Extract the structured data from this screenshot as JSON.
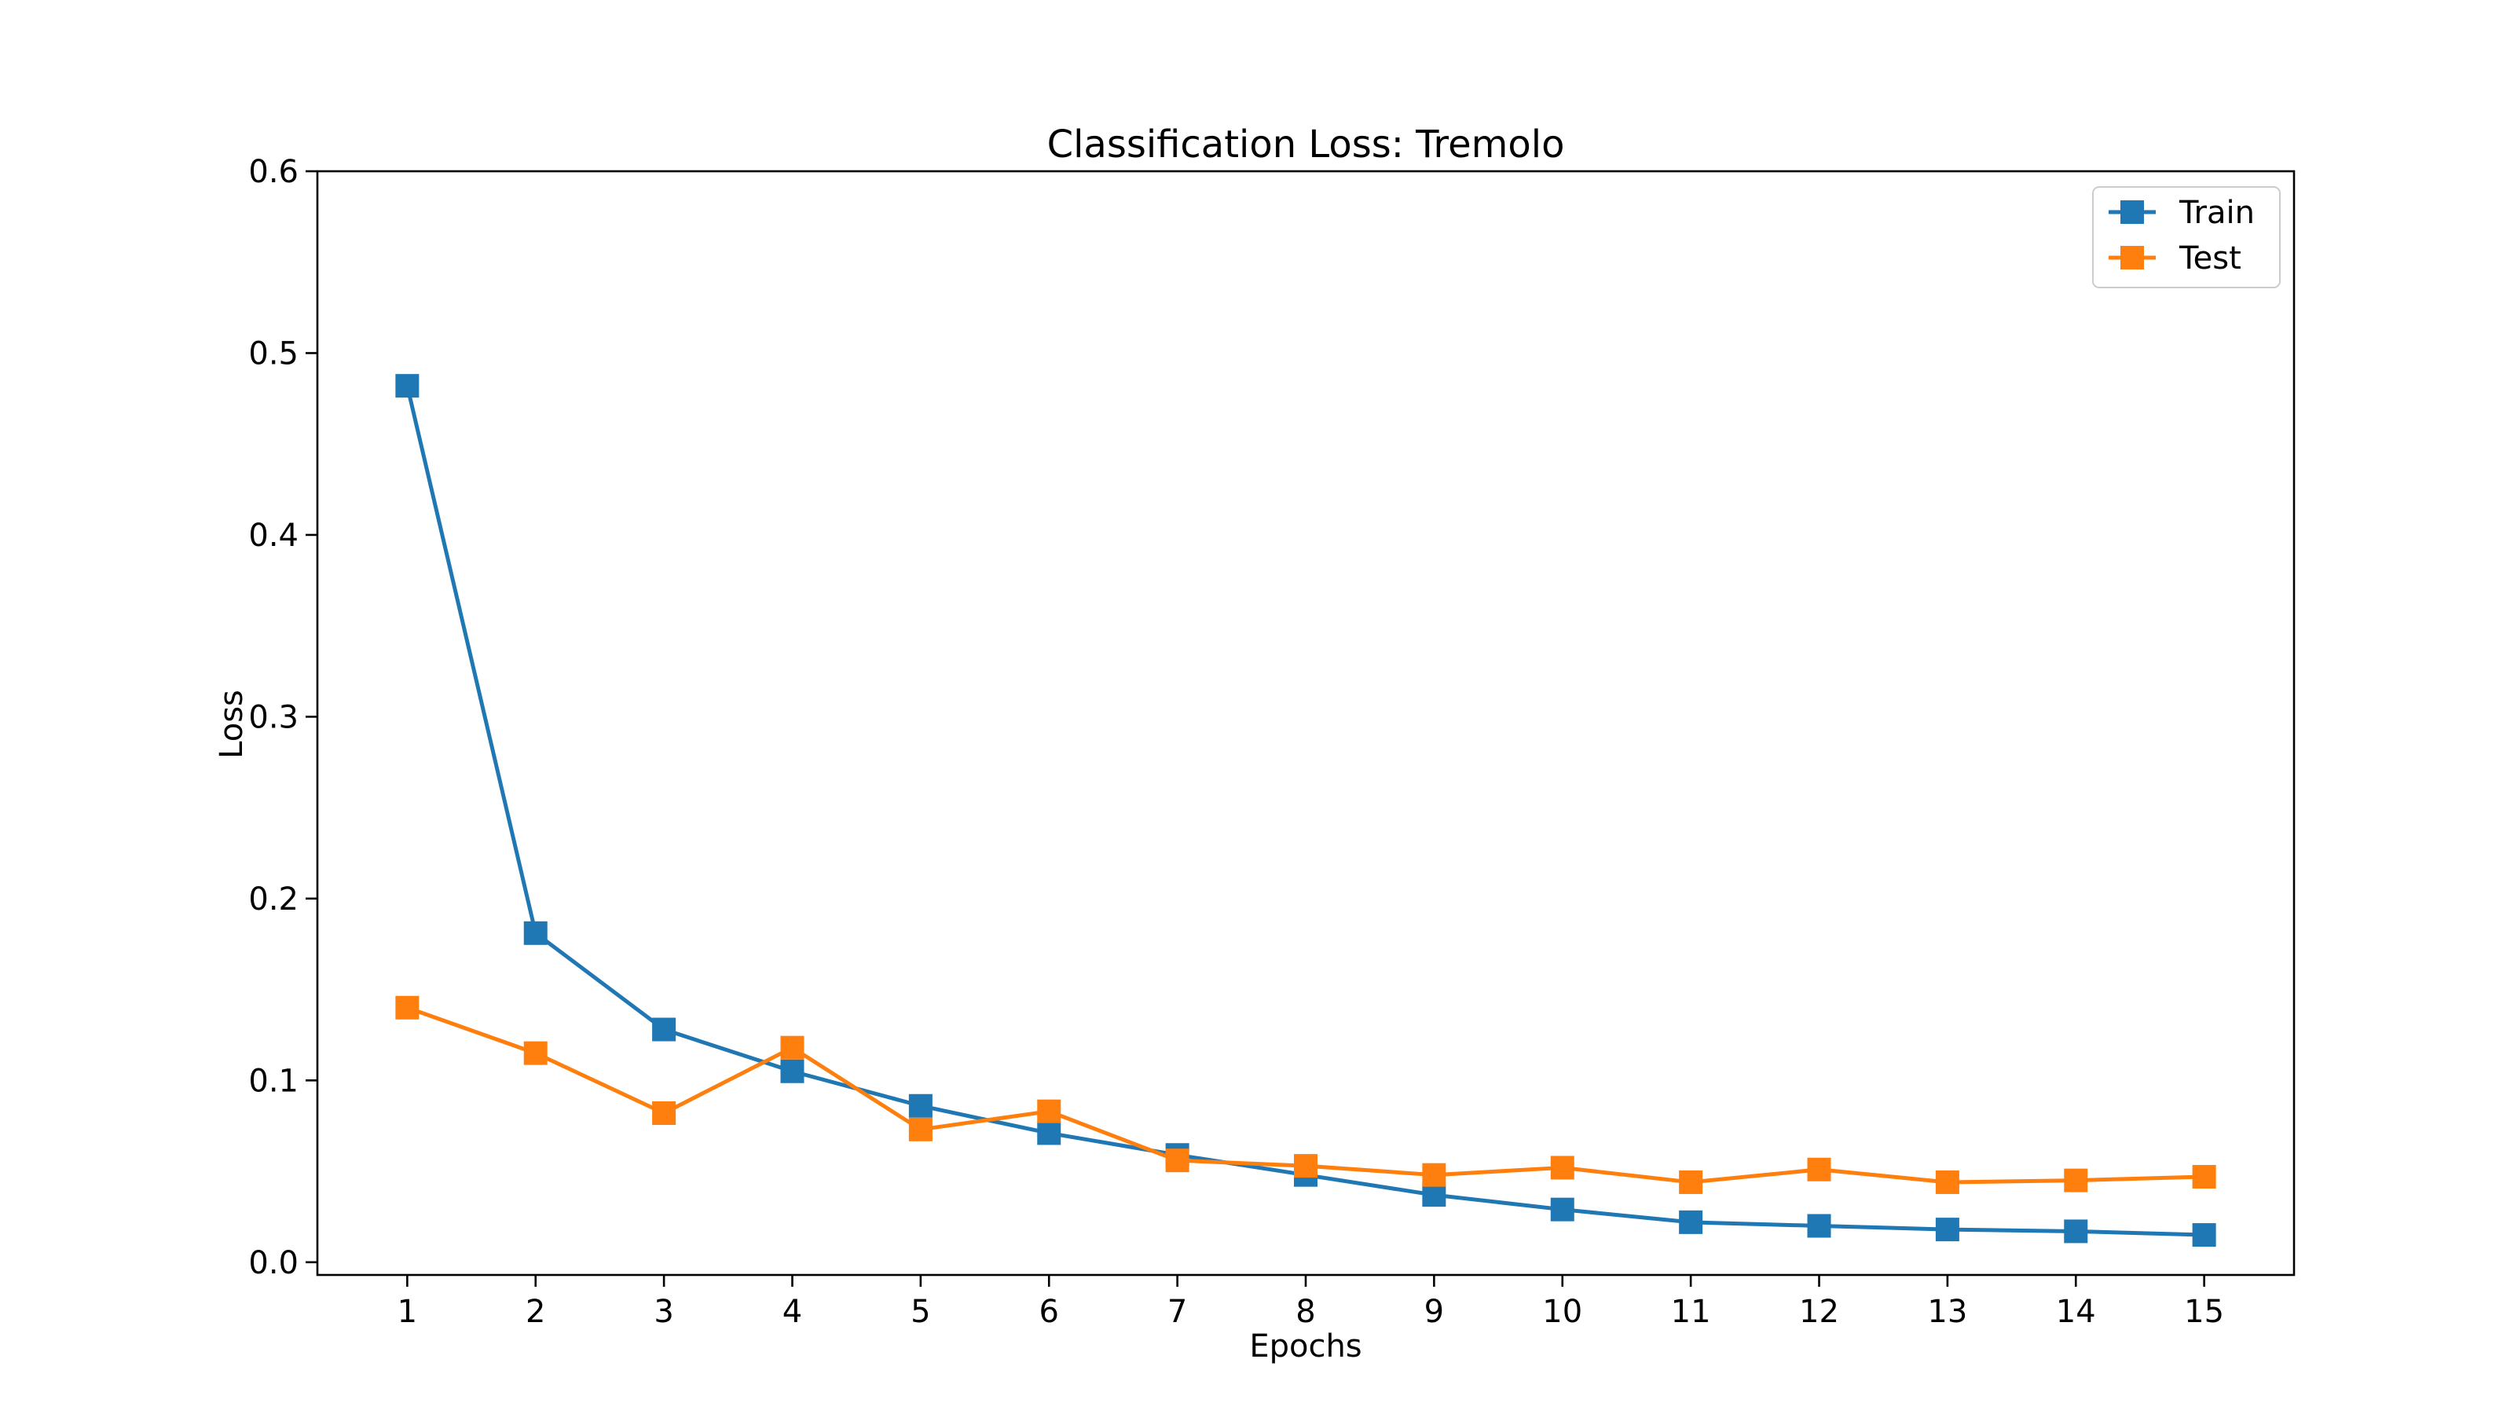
{
  "chart_data": {
    "type": "line",
    "title": "Classification Loss: Tremolo",
    "xlabel": "Epochs",
    "ylabel": "Loss",
    "x": [
      1,
      2,
      3,
      4,
      5,
      6,
      7,
      8,
      9,
      10,
      11,
      12,
      13,
      14,
      15
    ],
    "xlim": [
      0.3,
      15.7
    ],
    "ylim": [
      -0.007,
      0.6
    ],
    "yticks": [
      0.0,
      0.1,
      0.2,
      0.3,
      0.4,
      0.5,
      0.6
    ],
    "ytick_labels": [
      "0.0",
      "0.1",
      "0.2",
      "0.3",
      "0.4",
      "0.5",
      "0.6"
    ],
    "xtick_labels": [
      "1",
      "2",
      "3",
      "4",
      "5",
      "6",
      "7",
      "8",
      "9",
      "10",
      "11",
      "12",
      "13",
      "14",
      "15"
    ],
    "grid": false,
    "legend_position": "top-right",
    "marker": "square",
    "series": [
      {
        "name": "Train",
        "color": "#1f77b4",
        "values": [
          0.482,
          0.181,
          0.128,
          0.105,
          0.086,
          0.071,
          0.059,
          0.048,
          0.037,
          0.029,
          0.022,
          0.02,
          0.018,
          0.017,
          0.015
        ]
      },
      {
        "name": "Test",
        "color": "#ff7f0e",
        "values": [
          0.14,
          0.115,
          0.082,
          0.118,
          0.073,
          0.083,
          0.056,
          0.053,
          0.048,
          0.052,
          0.044,
          0.051,
          0.044,
          0.045,
          0.047
        ]
      }
    ]
  }
}
